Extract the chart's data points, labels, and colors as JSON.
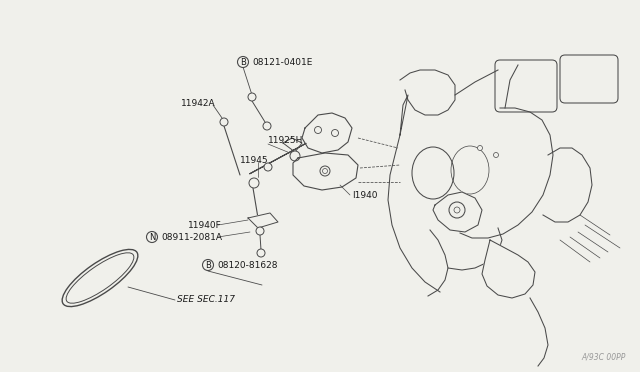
{
  "bg_color": "#f0f0eb",
  "line_color": "#4a4a4a",
  "text_color": "#1a1a1a",
  "watermark": "A/93C 00PP",
  "labels": {
    "B1": "08121-0401E",
    "L11942A": "11942A",
    "L11945": "11945",
    "L11925H": "11925H",
    "L11940F": "11940F",
    "N1": "08911-2081A",
    "B2": "08120-81628",
    "L11940": "I1940",
    "see_sec": "SEE SEC.117"
  },
  "fs": 6.5,
  "fs_small": 5.5
}
